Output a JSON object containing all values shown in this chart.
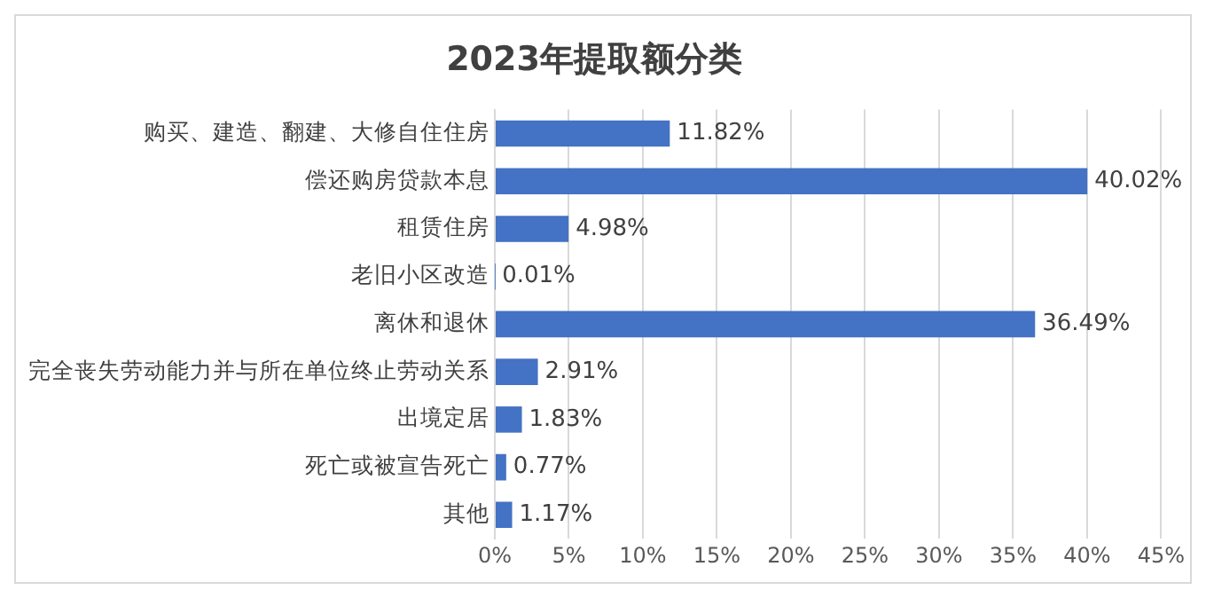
{
  "chart_data": {
    "type": "bar",
    "orientation": "horizontal",
    "title": "2023年提取额分类",
    "categories": [
      "购买、建造、翻建、大修自住住房",
      "偿还购房贷款本息",
      "租赁住房",
      "老旧小区改造",
      "离休和退休",
      "完全丧失劳动能力并与所在单位终止劳动关系",
      "出境定居",
      "死亡或被宣告死亡",
      "其他"
    ],
    "values": [
      11.82,
      40.02,
      4.98,
      0.01,
      36.49,
      2.91,
      1.83,
      0.77,
      1.17
    ],
    "value_labels": [
      "11.82%",
      "40.02%",
      "4.98%",
      "0.01%",
      "36.49%",
      "2.91%",
      "1.83%",
      "0.77%",
      "1.17%"
    ],
    "color": "#4472c4",
    "xlim": [
      0,
      45
    ],
    "xticks": [
      {
        "value": 0,
        "label": "0%"
      },
      {
        "value": 5,
        "label": "5%"
      },
      {
        "value": 10,
        "label": "10%"
      },
      {
        "value": 15,
        "label": "15%"
      },
      {
        "value": 20,
        "label": "20%"
      },
      {
        "value": 25,
        "label": "25%"
      },
      {
        "value": 30,
        "label": "30%"
      },
      {
        "value": 35,
        "label": "35%"
      },
      {
        "value": 40,
        "label": "40%"
      },
      {
        "value": 45,
        "label": "45%"
      }
    ],
    "grid": "x",
    "legend": false
  }
}
